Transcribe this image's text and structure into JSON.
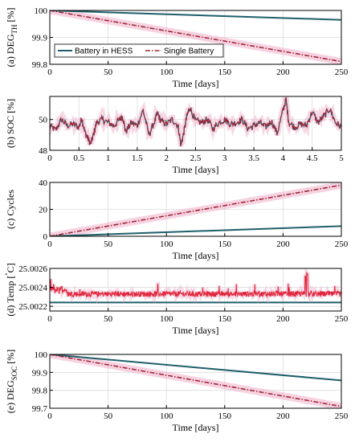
{
  "colors": {
    "hess": "#1f5f6b",
    "single": "#a0283a",
    "single_band": "#f2b6cf",
    "temp_single": "#e0253b",
    "temp_hess": "#1f5f6b",
    "grid": "#dcdcdc"
  },
  "chart_data": [
    {
      "type": "line",
      "ylabel_main": "(a) DEG",
      "ylabel_sub": "TH",
      "ylabel_unit": " [%]",
      "xlabel": "Time [days]",
      "xlim": [
        0,
        250
      ],
      "ylim": [
        99.8,
        100
      ],
      "xticks": [
        "0",
        "50",
        "100",
        "150",
        "200",
        "250"
      ],
      "xtick_values": [
        0,
        50,
        100,
        150,
        200,
        250
      ],
      "yticks": [
        "99.8",
        "99.9",
        "100"
      ],
      "ytick_values": [
        99.8,
        99.9,
        100
      ],
      "legend": {
        "placement": "bottom-left",
        "entries": [
          "Battery in HESS",
          "Single Battery"
        ]
      },
      "series": [
        {
          "name": "Battery in HESS",
          "x": [
            0,
            250
          ],
          "y": [
            100.0,
            99.965
          ]
        },
        {
          "name": "Single Battery",
          "x": [
            0,
            250
          ],
          "y": [
            100.0,
            99.81
          ]
        }
      ]
    },
    {
      "type": "line",
      "ylabel_main": "(b) SOC [%]",
      "xlabel": "Time [days]",
      "xlim": [
        0,
        5
      ],
      "ylim": [
        48,
        51.5
      ],
      "xticks": [
        "0",
        "0.5",
        "1",
        "1.5",
        "2",
        "2.5",
        "3",
        "3.5",
        "4",
        "4.5",
        "5"
      ],
      "xtick_values": [
        0,
        0.5,
        1,
        1.5,
        2,
        2.5,
        3,
        3.5,
        4,
        4.5,
        5
      ],
      "yticks": [
        "48",
        "50"
      ],
      "ytick_values": [
        48,
        50
      ],
      "series": [
        {
          "name": "Single Battery",
          "x": [
            0,
            0.1,
            0.2,
            0.3,
            0.4,
            0.5,
            0.55,
            0.6,
            0.65,
            0.7,
            0.75,
            0.8,
            0.9,
            1.0,
            1.1,
            1.2,
            1.25,
            1.3,
            1.4,
            1.5,
            1.6,
            1.7,
            1.8,
            1.85,
            1.9,
            2.0,
            2.1,
            2.2,
            2.25,
            2.3,
            2.35,
            2.4,
            2.5,
            2.6,
            2.7,
            2.8,
            2.9,
            3.0,
            3.1,
            3.2,
            3.3,
            3.4,
            3.5,
            3.6,
            3.7,
            3.8,
            3.9,
            4.0,
            4.05,
            4.1,
            4.2,
            4.3,
            4.4,
            4.5,
            4.6,
            4.7,
            4.8,
            4.9,
            5.0
          ],
          "y": [
            49.6,
            49.3,
            50.0,
            49.6,
            49.7,
            49.5,
            50.1,
            49.2,
            48.8,
            48.4,
            49.0,
            49.8,
            50.0,
            49.8,
            49.6,
            50.0,
            50.2,
            49.2,
            49.8,
            49.6,
            50.6,
            49.0,
            49.9,
            50.4,
            49.9,
            49.7,
            50.0,
            49.6,
            48.3,
            49.2,
            50.2,
            50.8,
            49.9,
            49.8,
            50.0,
            49.4,
            49.8,
            50.0,
            49.7,
            49.8,
            50.0,
            49.4,
            49.6,
            49.8,
            49.5,
            49.9,
            49.1,
            50.6,
            51.3,
            49.8,
            49.5,
            49.7,
            49.6,
            50.5,
            49.8,
            50.2,
            50.7,
            49.8,
            49.5
          ]
        }
      ]
    },
    {
      "type": "line",
      "ylabel_main": "(c) Cycles",
      "xlabel": "Time [days]",
      "xlim": [
        0,
        250
      ],
      "ylim": [
        0,
        40
      ],
      "xticks": [
        "0",
        "50",
        "100",
        "150",
        "200",
        "250"
      ],
      "xtick_values": [
        0,
        50,
        100,
        150,
        200,
        250
      ],
      "yticks": [
        "0",
        "20",
        "40"
      ],
      "ytick_values": [
        0,
        20,
        40
      ],
      "series": [
        {
          "name": "Battery in HESS",
          "x": [
            0,
            250
          ],
          "y": [
            0,
            7.5
          ]
        },
        {
          "name": "Single Battery",
          "x": [
            0,
            250
          ],
          "y": [
            0,
            38
          ]
        }
      ]
    },
    {
      "type": "line",
      "ylabel_main": "(d) Temp [",
      "ylabel_deg": "°",
      "ylabel_unit": "C]",
      "xlabel": "Time [days]",
      "xlim": [
        0,
        250
      ],
      "ylim": [
        25.00215,
        25.0026
      ],
      "xticks": [
        "0",
        "50",
        "100",
        "150",
        "200",
        "250"
      ],
      "xtick_values": [
        0,
        50,
        100,
        150,
        200,
        250
      ],
      "yticks": [
        "25.0022",
        "25.0024",
        "25.0026"
      ],
      "ytick_values": [
        25.0022,
        25.0024,
        25.0026
      ],
      "series": [
        {
          "name": "Single Battery",
          "x": [
            0,
            250
          ],
          "y": [
            25.00233,
            25.00233
          ]
        },
        {
          "name": "Battery in HESS",
          "x": [
            0,
            250
          ],
          "y": [
            25.00224,
            25.00224
          ]
        }
      ]
    },
    {
      "type": "line",
      "ylabel_main": "(e) DEG",
      "ylabel_sub": "SOC",
      "ylabel_unit": " [%]",
      "xlabel": "Time [days]",
      "xlim": [
        0,
        250
      ],
      "ylim": [
        99.7,
        100
      ],
      "xticks": [
        "0",
        "50",
        "100",
        "150",
        "200",
        "250"
      ],
      "xtick_values": [
        0,
        50,
        100,
        150,
        200,
        250
      ],
      "yticks": [
        "99.7",
        "99.8",
        "99.9",
        "100"
      ],
      "ytick_values": [
        99.7,
        99.8,
        99.9,
        100
      ],
      "series": [
        {
          "name": "Battery in HESS",
          "x": [
            0,
            250
          ],
          "y": [
            100.0,
            99.855
          ]
        },
        {
          "name": "Single Battery",
          "x": [
            0,
            250
          ],
          "y": [
            100.0,
            99.71
          ]
        }
      ]
    }
  ]
}
